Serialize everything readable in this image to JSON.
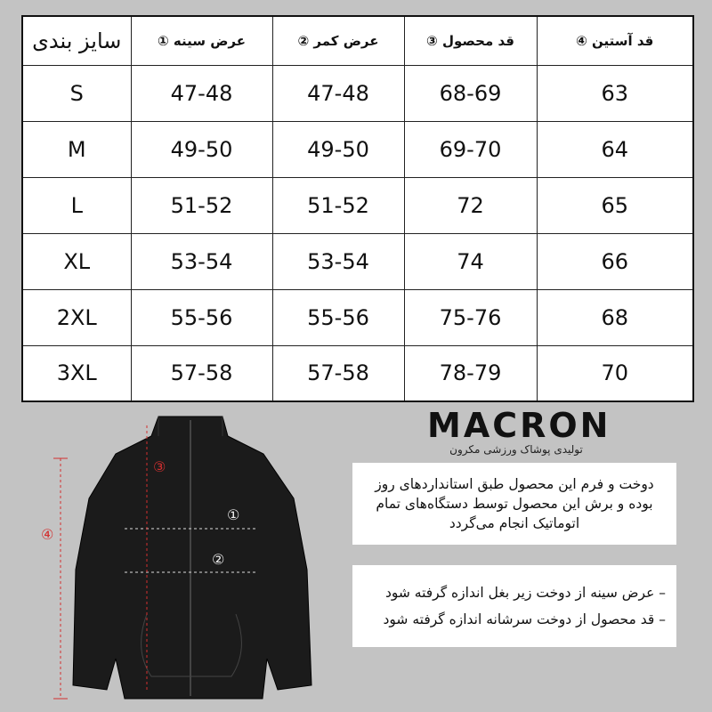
{
  "table": {
    "headers": [
      "سایز بندی",
      "عرض سینه ①",
      "عرض کمر ②",
      "قد محصول ③",
      "قد آستین ④"
    ],
    "rows": [
      [
        "S",
        "47-48",
        "47-48",
        "68-69",
        "63"
      ],
      [
        "M",
        "49-50",
        "49-50",
        "69-70",
        "64"
      ],
      [
        "L",
        "51-52",
        "51-52",
        "72",
        "65"
      ],
      [
        "XL",
        "53-54",
        "53-54",
        "74",
        "66"
      ],
      [
        "2XL",
        "55-56",
        "55-56",
        "75-76",
        "68"
      ],
      [
        "3XL",
        "57-58",
        "57-58",
        "78-79",
        "70"
      ]
    ]
  },
  "logo": {
    "brand": "MACRON",
    "subtitle": "تولیدی پوشاک ورزشی مکرون"
  },
  "info_box": {
    "text": "دوخت و فرم این محصول طبق استانداردهای روز بوده و برش این محصول توسط دستگاه‌های تمام اتوماتیک انجام می‌گردد"
  },
  "notes": [
    "– عرض سینه از دوخت زیر بغل اندازه گرفته شود",
    "– قد محصول از دوخت سرشانه اندازه گرفته شود"
  ],
  "markers": {
    "chest": "①",
    "waist": "②",
    "length": "③",
    "sleeve": "④"
  },
  "colors": {
    "background": "#c3c3c3",
    "marker": "#d32f2f",
    "jacket": "#1b1b1b"
  }
}
